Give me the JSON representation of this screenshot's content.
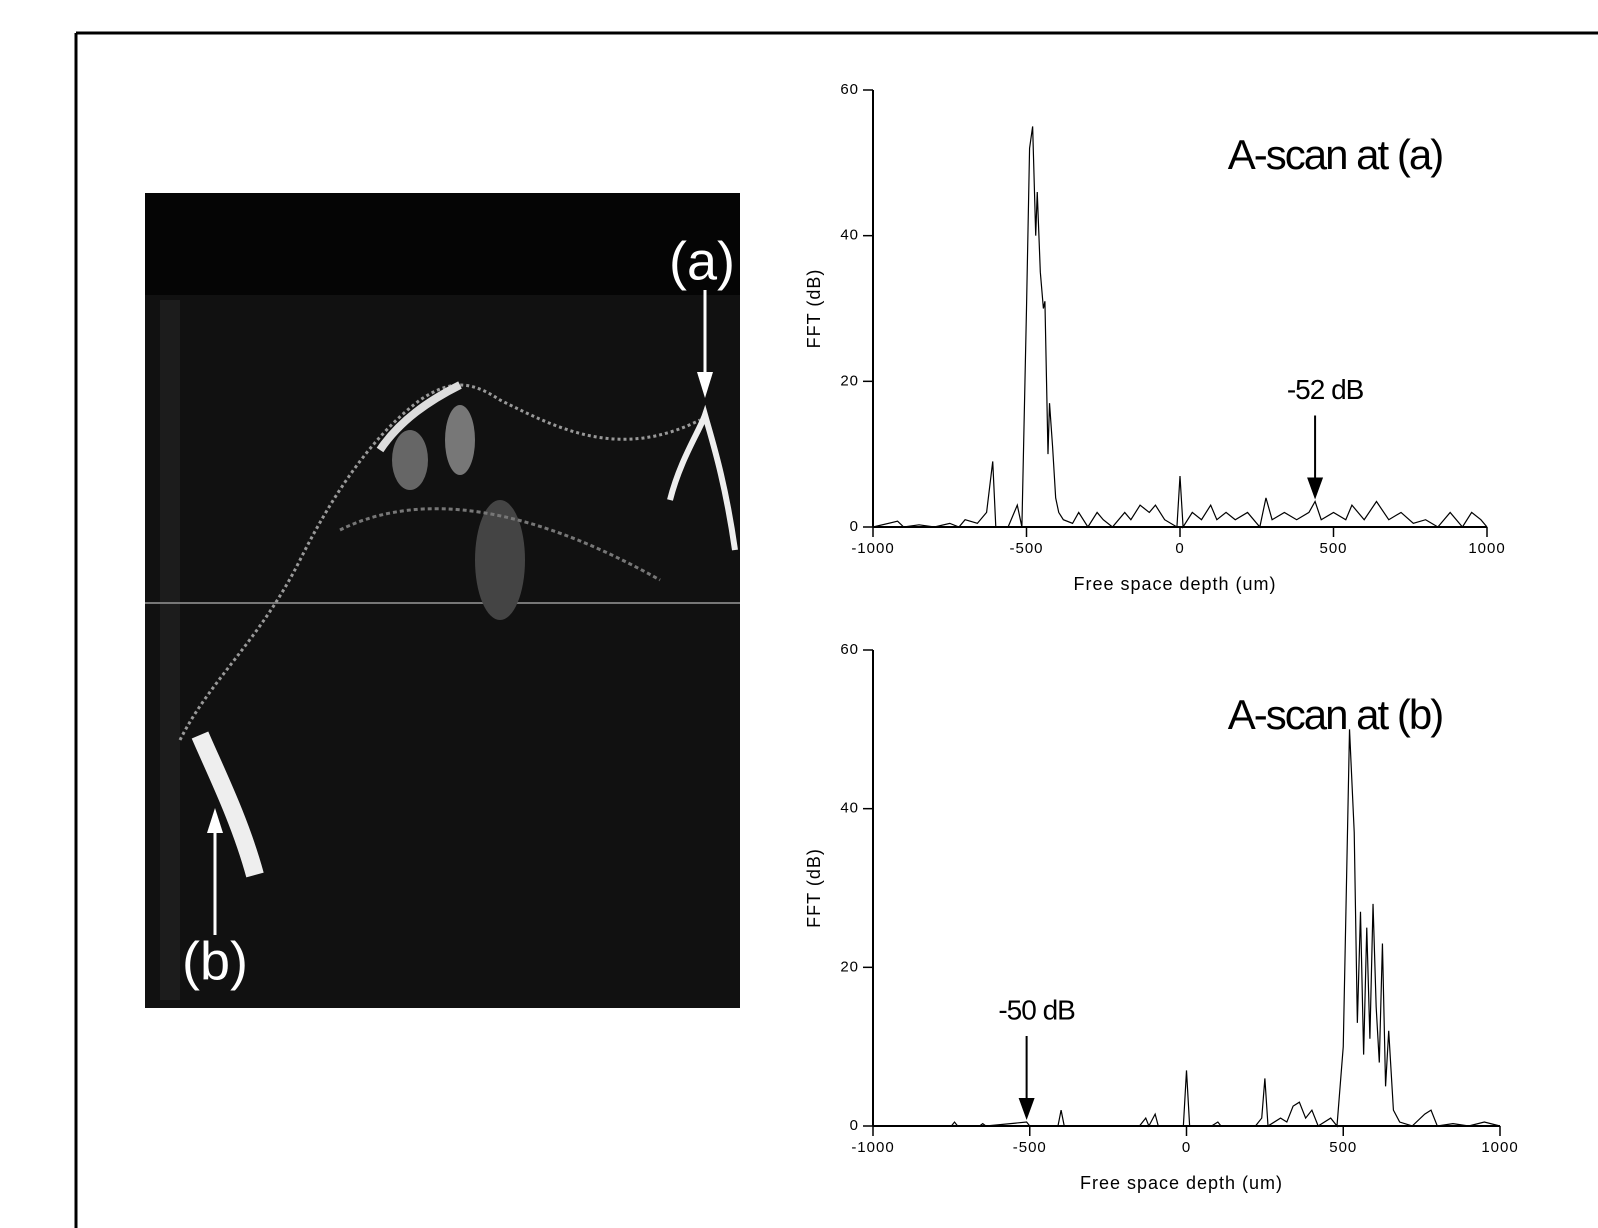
{
  "image": {
    "labels": [
      "(a)",
      "(b)"
    ]
  },
  "chart_data": [
    {
      "type": "line",
      "title": "A-scan at (a)",
      "x_label": "Free space depth (um)",
      "y_label": "FFT (dB)",
      "xlim": [
        -1000,
        1000
      ],
      "ylim": [
        0,
        60
      ],
      "xticks": [
        -1000,
        -500,
        0,
        500,
        1000
      ],
      "yticks": [
        0,
        20,
        40,
        60
      ],
      "x": [
        -1000,
        -920,
        -900,
        -850,
        -800,
        -750,
        -720,
        -700,
        -660,
        -630,
        -610,
        -600,
        -560,
        -530,
        -515,
        -500,
        -490,
        -480,
        -470,
        -465,
        -455,
        -445,
        -440,
        -430,
        -425,
        -415,
        -405,
        -395,
        -380,
        -350,
        -330,
        -300,
        -270,
        -250,
        -220,
        -180,
        -160,
        -130,
        -100,
        -80,
        -50,
        -10,
        0,
        10,
        40,
        70,
        100,
        120,
        150,
        180,
        220,
        260,
        280,
        300,
        340,
        380,
        420,
        440,
        460,
        500,
        540,
        560,
        600,
        640,
        680,
        720,
        760,
        800,
        840,
        880,
        920,
        950,
        980,
        1000
      ],
      "series": [
        {
          "color": "#000000",
          "values": [
            0,
            0.8,
            0,
            0.3,
            0,
            0.5,
            0,
            1,
            0.5,
            2,
            9,
            0,
            0,
            3,
            0,
            30,
            52,
            55,
            40,
            46,
            35,
            30,
            31,
            10,
            17,
            11,
            4,
            2,
            1,
            0.5,
            2,
            0,
            2,
            1,
            0,
            2,
            1,
            3,
            2,
            3,
            1,
            0,
            7,
            0,
            2,
            1,
            3,
            1,
            2,
            1,
            2,
            0,
            4,
            1,
            2,
            1,
            2,
            3.5,
            1,
            2,
            1,
            3,
            1,
            3.5,
            1,
            2,
            0.5,
            1,
            0,
            2,
            0,
            2,
            1,
            0
          ]
        }
      ],
      "annotations": [
        {
          "text": "-52 dB",
          "x": 440,
          "y": 3.5
        }
      ]
    },
    {
      "type": "line",
      "title": "A-scan at (b)",
      "x_label": "Free space depth (um)",
      "y_label": "FFT (dB)",
      "xlim": [
        -1000,
        1000
      ],
      "ylim": [
        0,
        60
      ],
      "xticks": [
        -1000,
        -500,
        0,
        500,
        1000
      ],
      "yticks": [
        0,
        20,
        40,
        60
      ],
      "x": [
        -1000,
        -750,
        -740,
        -730,
        -660,
        -650,
        -640,
        -510,
        -500,
        -410,
        -400,
        -390,
        -150,
        -130,
        -120,
        -100,
        -90,
        -10,
        0,
        10,
        80,
        100,
        110,
        220,
        240,
        250,
        260,
        300,
        320,
        340,
        360,
        380,
        400,
        420,
        460,
        480,
        500,
        510,
        520,
        535,
        545,
        555,
        565,
        575,
        585,
        595,
        605,
        615,
        625,
        635,
        645,
        660,
        680,
        720,
        760,
        780,
        800,
        850,
        900,
        950,
        1000
      ],
      "series": [
        {
          "color": "#000000",
          "values": [
            0,
            0,
            0.5,
            0,
            0,
            0.3,
            0,
            0.5,
            0,
            0,
            2,
            0,
            0,
            1,
            0,
            1.5,
            0,
            0,
            7,
            0,
            0,
            0.5,
            0,
            0,
            1,
            6,
            0,
            1,
            0.5,
            2.5,
            3,
            1,
            2,
            0,
            1,
            0,
            10,
            30,
            50,
            37,
            13,
            27,
            9,
            25,
            11,
            28,
            15,
            8,
            23,
            5,
            12,
            2,
            0.5,
            0,
            1.5,
            2,
            0,
            0.3,
            0,
            0.5,
            0
          ]
        }
      ],
      "annotations": [
        {
          "text": "-50 dB",
          "x": -510,
          "y": 0.5
        }
      ]
    }
  ]
}
